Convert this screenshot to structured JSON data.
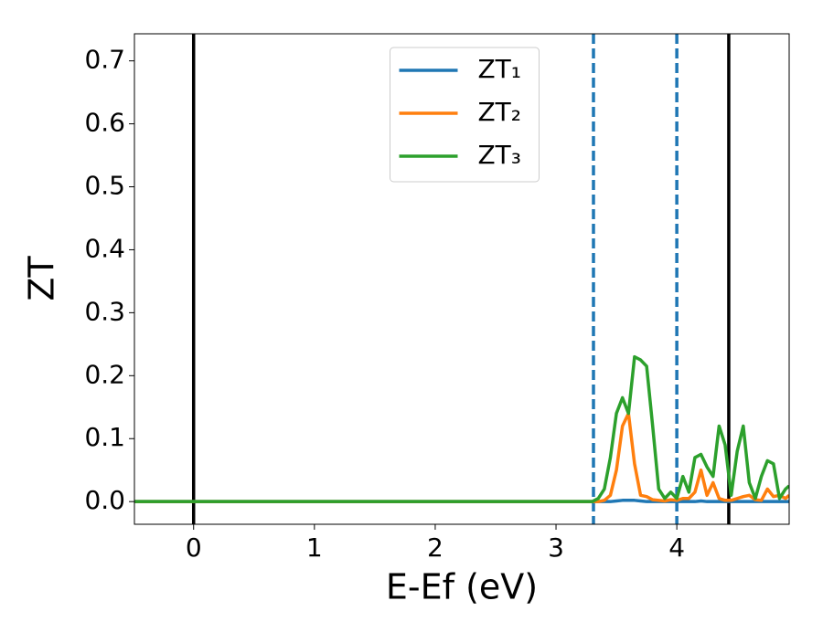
{
  "chart_data": {
    "type": "line",
    "xlabel": "E-Ef (eV)",
    "ylabel": "ZT",
    "x": [
      -0.49,
      3.3,
      3.35,
      3.4,
      3.45,
      3.5,
      3.55,
      3.6,
      3.65,
      3.7,
      3.75,
      3.8,
      3.85,
      3.9,
      3.95,
      4.0,
      4.05,
      4.1,
      4.15,
      4.2,
      4.25,
      4.3,
      4.35,
      4.4,
      4.45,
      4.5,
      4.55,
      4.6,
      4.65,
      4.7,
      4.75,
      4.8,
      4.85,
      4.9,
      4.93
    ],
    "series": [
      {
        "name": "ZT₁",
        "color": "#1f77b4",
        "values": [
          0,
          0,
          0,
          0,
          0,
          0.001,
          0.002,
          0.002,
          0.002,
          0.001,
          0,
          0,
          0,
          0,
          0,
          0,
          0,
          0,
          0,
          0.001,
          0,
          0,
          0,
          0,
          0,
          0,
          0,
          0,
          0,
          0,
          0,
          0,
          0,
          0,
          0
        ]
      },
      {
        "name": "ZT₂",
        "color": "#ff7f0e",
        "values": [
          0,
          0,
          0,
          0.002,
          0.01,
          0.05,
          0.12,
          0.14,
          0.06,
          0.01,
          0.008,
          0.003,
          0.002,
          0.001,
          0.003,
          0.002,
          0.005,
          0.005,
          0.015,
          0.05,
          0.01,
          0.03,
          0.005,
          0.002,
          0.002,
          0.005,
          0.008,
          0.01,
          0.003,
          0.002,
          0.02,
          0.008,
          0.01,
          0.005,
          0.01
        ]
      },
      {
        "name": "ZT₃",
        "color": "#2ca02c",
        "values": [
          0,
          0,
          0.005,
          0.02,
          0.07,
          0.14,
          0.165,
          0.14,
          0.23,
          0.225,
          0.215,
          0.12,
          0.02,
          0.005,
          0.015,
          0.005,
          0.04,
          0.015,
          0.07,
          0.075,
          0.055,
          0.04,
          0.12,
          0.09,
          0.01,
          0.08,
          0.12,
          0.03,
          0.005,
          0.04,
          0.065,
          0.06,
          0.005,
          0.02,
          0.025
        ]
      }
    ],
    "vlines": [
      {
        "x": 0,
        "color": "#000000",
        "style": "solid"
      },
      {
        "x": 4.43,
        "color": "#000000",
        "style": "solid"
      },
      {
        "x": 3.31,
        "color": "#1f77b4",
        "style": "dashed"
      },
      {
        "x": 4.0,
        "color": "#1f77b4",
        "style": "dashed"
      }
    ],
    "xlim": [
      -0.49,
      4.93
    ],
    "xticks": [
      0,
      1,
      2,
      3,
      4
    ],
    "ylim": [
      -0.036,
      0.743
    ],
    "yticks": [
      {
        "value": 0,
        "label": "0.0"
      },
      0.1,
      0.2,
      0.3,
      0.4,
      0.5,
      0.6,
      0.7
    ],
    "legend": "upper center",
    "grid": false
  }
}
